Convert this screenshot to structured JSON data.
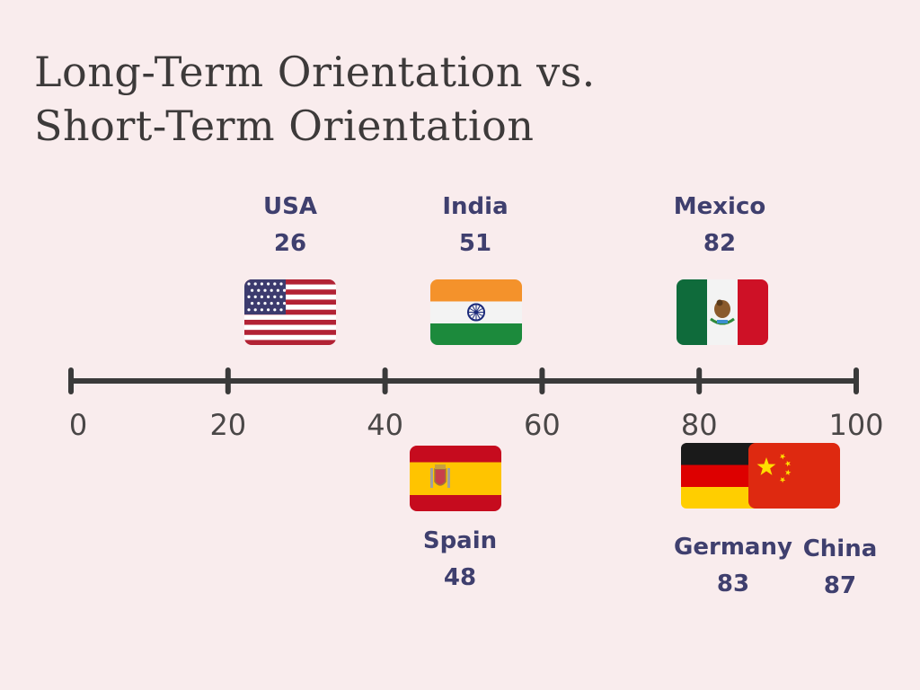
{
  "chart_data": {
    "type": "scatter",
    "title_lines": [
      "Long-Term Orientation vs.",
      "Short-Term  Orientation"
    ],
    "xlim": [
      0,
      100
    ],
    "ticks": [
      0,
      20,
      40,
      60,
      80,
      100
    ],
    "tick_labels": [
      "0",
      "20",
      "40",
      "60",
      "80",
      "100"
    ],
    "points": [
      {
        "country": "USA",
        "value": 26,
        "value_label": "26",
        "placement": "above",
        "flag": "usa-flag-icon"
      },
      {
        "country": "India",
        "value": 51,
        "value_label": "51",
        "placement": "above",
        "flag": "india-flag-icon"
      },
      {
        "country": "Mexico",
        "value": 82,
        "value_label": "82",
        "placement": "above",
        "flag": "mexico-flag-icon"
      },
      {
        "country": "Spain",
        "value": 48,
        "value_label": "48",
        "placement": "below",
        "flag": "spain-flag-icon"
      },
      {
        "country": "Germany",
        "value": 83,
        "value_label": "83",
        "placement": "below",
        "flag": "germany-flag-icon"
      },
      {
        "country": "China",
        "value": 87,
        "value_label": "87",
        "placement": "below",
        "flag": "china-flag-icon"
      }
    ],
    "colors": {
      "axis": "#3a3a3a",
      "label": "#3f3f6e",
      "background": "#f9eced"
    }
  }
}
